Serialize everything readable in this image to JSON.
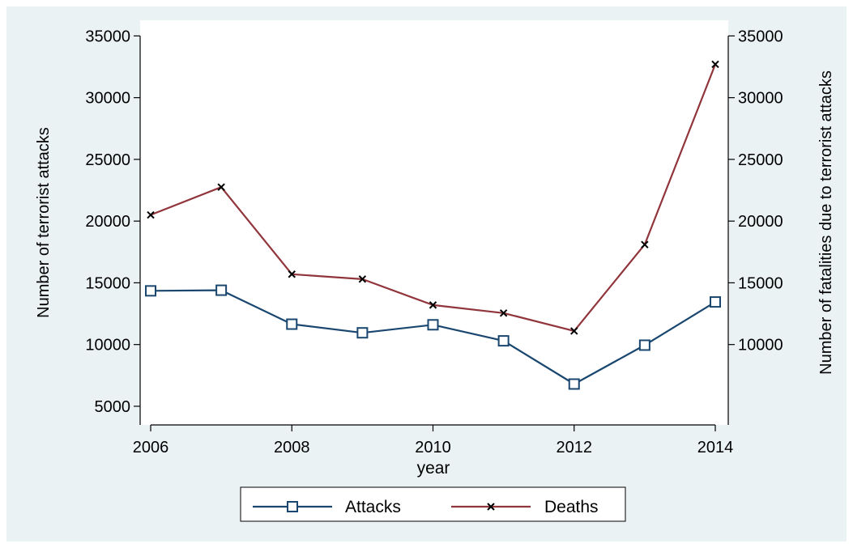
{
  "chart_data": {
    "type": "line",
    "x": [
      2006,
      2007,
      2008,
      2009,
      2010,
      2011,
      2012,
      2013,
      2014
    ],
    "xticks": [
      2006,
      2008,
      2010,
      2012,
      2014
    ],
    "xlabel": "year",
    "xlim": [
      2006,
      2014
    ],
    "left_axis": {
      "label": "Number of terrorist attacks",
      "ylim": [
        0,
        35000
      ],
      "ticks": [
        5000,
        10000,
        15000,
        20000,
        25000,
        30000,
        35000
      ]
    },
    "right_axis": {
      "label": "Number of fatalities due to terrorist attacks",
      "ylim": [
        0,
        35000
      ],
      "ticks": [
        10000,
        15000,
        20000,
        25000,
        30000,
        35000
      ]
    },
    "series": [
      {
        "name": "Attacks",
        "axis": "left",
        "marker": "square",
        "color": "#1a476f",
        "values": [
          14350,
          14400,
          11650,
          10950,
          11600,
          10300,
          6800,
          9950,
          13450
        ]
      },
      {
        "name": "Deaths",
        "axis": "right",
        "marker": "x",
        "color": "#90353b",
        "values": [
          20500,
          22750,
          15700,
          15300,
          13200,
          12550,
          11100,
          18100,
          32700
        ]
      }
    ],
    "legend": {
      "placement": "bottom",
      "entries": [
        "Attacks",
        "Deaths"
      ]
    },
    "grid": false,
    "colors": {
      "outer_background": "#eaf2f3",
      "plot_background": "#ffffff",
      "axis": "#000000"
    }
  }
}
